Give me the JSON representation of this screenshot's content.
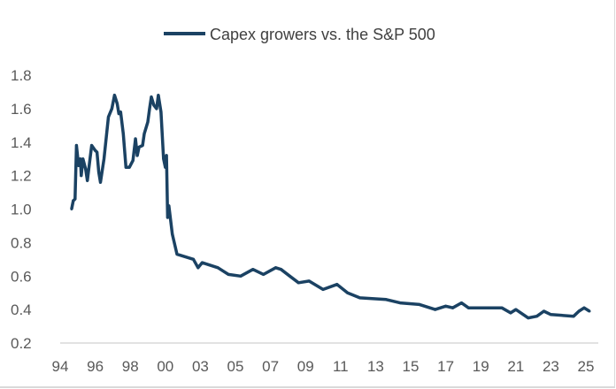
{
  "chart_data": {
    "type": "line",
    "title": "",
    "xlabel": "",
    "ylabel": "",
    "ylim": [
      0.2,
      1.8
    ],
    "yticks": [
      "0.2",
      "0.4",
      "0.6",
      "0.8",
      "1.0",
      "1.2",
      "1.4",
      "1.6",
      "1.8"
    ],
    "xtick_labels": [
      "94",
      "96",
      "98",
      "00",
      "03",
      "05",
      "07",
      "09",
      "11",
      "13",
      "15",
      "17",
      "19",
      "21",
      "23",
      "25"
    ],
    "xtick_years": [
      1994,
      1996,
      1998,
      2000,
      2003,
      2005,
      2007,
      2009,
      2011,
      2013,
      2015,
      2017,
      2019,
      2021,
      2023,
      2025
    ],
    "grid": false,
    "legend": "top",
    "series": [
      {
        "name": "Capex growers vs. the S&P 500",
        "color": "#1b4263",
        "points": [
          [
            1994.65,
            1.0
          ],
          [
            1994.75,
            1.05
          ],
          [
            1994.85,
            1.06
          ],
          [
            1994.93,
            1.38
          ],
          [
            1995.05,
            1.26
          ],
          [
            1995.15,
            1.3
          ],
          [
            1995.2,
            1.2
          ],
          [
            1995.3,
            1.3
          ],
          [
            1995.45,
            1.24
          ],
          [
            1995.55,
            1.17
          ],
          [
            1995.7,
            1.3
          ],
          [
            1995.8,
            1.38
          ],
          [
            1996.0,
            1.35
          ],
          [
            1996.1,
            1.34
          ],
          [
            1996.2,
            1.22
          ],
          [
            1996.3,
            1.16
          ],
          [
            1996.5,
            1.3
          ],
          [
            1996.75,
            1.55
          ],
          [
            1996.95,
            1.6
          ],
          [
            1997.1,
            1.68
          ],
          [
            1997.25,
            1.63
          ],
          [
            1997.35,
            1.57
          ],
          [
            1997.45,
            1.58
          ],
          [
            1997.6,
            1.45
          ],
          [
            1997.75,
            1.25
          ],
          [
            1997.95,
            1.25
          ],
          [
            1998.15,
            1.29
          ],
          [
            1998.3,
            1.42
          ],
          [
            1998.4,
            1.32
          ],
          [
            1998.5,
            1.37
          ],
          [
            1998.7,
            1.38
          ],
          [
            1998.8,
            1.45
          ],
          [
            1999.0,
            1.52
          ],
          [
            1999.1,
            1.6
          ],
          [
            1999.2,
            1.67
          ],
          [
            1999.35,
            1.62
          ],
          [
            1999.5,
            1.6
          ],
          [
            1999.6,
            1.68
          ],
          [
            1999.75,
            1.58
          ],
          [
            1999.9,
            1.3
          ],
          [
            2000.0,
            1.25
          ],
          [
            2000.1,
            1.32
          ],
          [
            2000.2,
            0.95
          ],
          [
            2000.3,
            1.02
          ],
          [
            2000.6,
            0.85
          ],
          [
            2001.0,
            0.73
          ],
          [
            2002.4,
            0.7
          ],
          [
            2002.8,
            0.65
          ],
          [
            2003.1,
            0.68
          ],
          [
            2004.0,
            0.65
          ],
          [
            2004.6,
            0.61
          ],
          [
            2005.3,
            0.6
          ],
          [
            2006.0,
            0.64
          ],
          [
            2006.6,
            0.61
          ],
          [
            2007.3,
            0.65
          ],
          [
            2007.6,
            0.64
          ],
          [
            2008.1,
            0.6
          ],
          [
            2008.6,
            0.56
          ],
          [
            2009.2,
            0.57
          ],
          [
            2010.0,
            0.52
          ],
          [
            2010.8,
            0.55
          ],
          [
            2011.4,
            0.5
          ],
          [
            2012.1,
            0.47
          ],
          [
            2013.6,
            0.46
          ],
          [
            2014.4,
            0.44
          ],
          [
            2015.5,
            0.43
          ],
          [
            2016.4,
            0.4
          ],
          [
            2017.0,
            0.42
          ],
          [
            2017.4,
            0.41
          ],
          [
            2017.9,
            0.44
          ],
          [
            2018.3,
            0.41
          ],
          [
            2019.5,
            0.41
          ],
          [
            2020.2,
            0.41
          ],
          [
            2020.7,
            0.38
          ],
          [
            2021.0,
            0.4
          ],
          [
            2021.7,
            0.35
          ],
          [
            2022.2,
            0.36
          ],
          [
            2022.6,
            0.39
          ],
          [
            2023.0,
            0.37
          ],
          [
            2024.3,
            0.36
          ],
          [
            2024.6,
            0.39
          ],
          [
            2024.9,
            0.41
          ],
          [
            2025.2,
            0.39
          ]
        ]
      }
    ]
  }
}
